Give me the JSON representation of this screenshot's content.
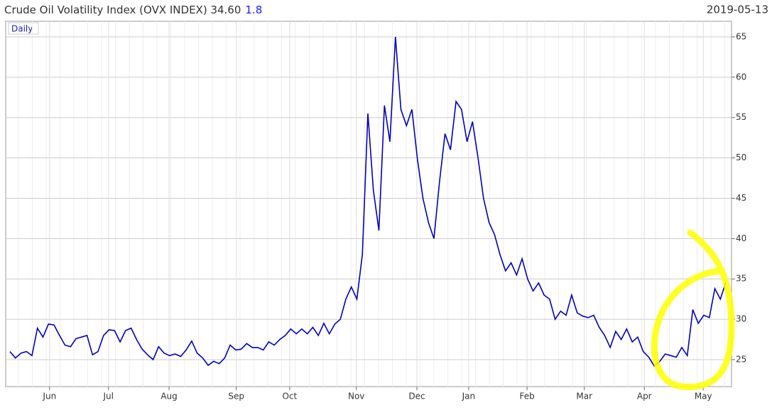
{
  "chart_data": {
    "type": "line",
    "title": "Crude Oil Volatility Index (OVX INDEX) 34.60",
    "change": 1.8,
    "date": "2019-05-13",
    "series": [
      {
        "name": "Daily",
        "color": "#0000bb",
        "values": [
          26,
          25.2,
          25.8,
          26,
          25.5,
          28.9,
          27.8,
          29.4,
          29.3,
          28,
          26.8,
          26.6,
          27.6,
          27.8,
          28,
          25.6,
          26,
          28,
          28.7,
          28.6,
          27.2,
          28.6,
          28.9,
          27.5,
          26.3,
          25.6,
          25,
          26.6,
          25.8,
          25.5,
          25.7,
          25.4,
          26.2,
          27.3,
          25.8,
          25.2,
          24.3,
          24.8,
          24.5,
          25.2,
          26.8,
          26.2,
          26.3,
          27,
          26.5,
          26.5,
          26.2,
          27.2,
          26.8,
          27.5,
          28,
          28.8,
          28.2,
          28.8,
          28.2,
          29,
          28,
          29.5,
          28.2,
          29.4,
          30,
          32.5,
          34,
          32.5,
          38,
          55.5,
          46,
          41,
          56.5,
          52,
          65,
          56,
          54,
          56,
          49.8,
          45,
          42,
          40,
          47,
          53,
          51,
          57,
          56,
          52,
          54.5,
          50,
          45,
          42,
          40.5,
          38,
          36,
          37,
          35.5,
          37.5,
          35,
          33.5,
          34.5,
          33,
          32.5,
          30,
          31,
          30.5,
          33,
          30.8,
          30.4,
          30.2,
          30.5,
          29,
          28,
          26.5,
          28.5,
          27.5,
          28.8,
          27.2,
          27.8,
          26,
          25.3,
          24.2,
          24.8,
          25.7,
          25.5,
          25.3,
          26.5,
          25.5,
          31.2,
          29.5,
          30.5,
          30.2,
          33.8,
          32.5,
          34.6
        ]
      }
    ],
    "xlim": [
      -0.77,
      131.03
    ],
    "xticks": [
      {
        "value": 7.2,
        "label": "Jun"
      },
      {
        "value": 17.9,
        "label": "Jul"
      },
      {
        "value": 28.9,
        "label": "Aug"
      },
      {
        "value": 41.1,
        "label": "Sep"
      },
      {
        "value": 50.8,
        "label": "Oct"
      },
      {
        "value": 62.9,
        "label": "Nov"
      },
      {
        "value": 73.9,
        "label": "Dec"
      },
      {
        "value": 83.3,
        "label": "Jan"
      },
      {
        "value": 93.9,
        "label": "Feb"
      },
      {
        "value": 104.3,
        "label": "Mar"
      },
      {
        "value": 115.2,
        "label": "Apr"
      },
      {
        "value": 125.9,
        "label": "May"
      }
    ],
    "ylim": [
      21.66,
      66.93
    ],
    "yticks": [
      25,
      30,
      35,
      40,
      45,
      50,
      55,
      60,
      65
    ],
    "grid": true
  }
}
